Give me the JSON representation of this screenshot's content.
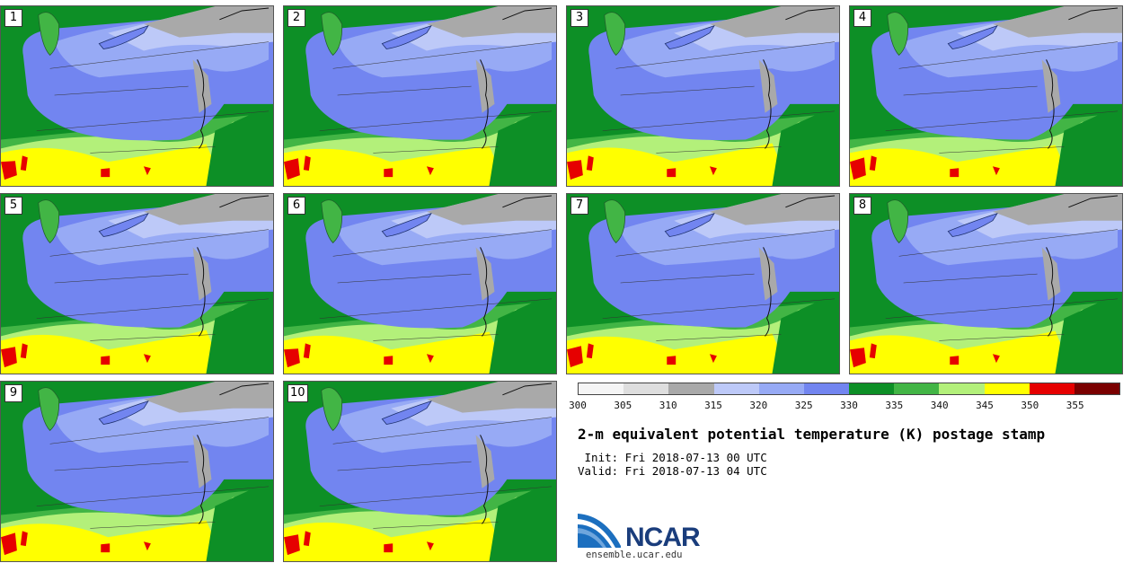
{
  "members": [
    "1",
    "2",
    "3",
    "4",
    "5",
    "6",
    "7",
    "8",
    "9",
    "10"
  ],
  "colorbar": {
    "colors": [
      "#f5f5f5",
      "#dedede",
      "#a9a9a9",
      "#bdc9f8",
      "#97aaf5",
      "#7285f0",
      "#0d8f26",
      "#42b545",
      "#b3f07a",
      "#ffff00",
      "#e60000",
      "#7a0000"
    ],
    "labels": [
      "300",
      "305",
      "310",
      "315",
      "320",
      "325",
      "330",
      "335",
      "340",
      "345",
      "350",
      "355"
    ]
  },
  "title": "2-m equivalent potential temperature (K) postage stamp",
  "init": " Init: Fri 2018-07-13 00 UTC",
  "valid": "Valid: Fri 2018-07-13 04 UTC",
  "logo": {
    "name": "NCAR",
    "url": "ensemble.ucar.edu",
    "color": "#1a3d7c"
  }
}
